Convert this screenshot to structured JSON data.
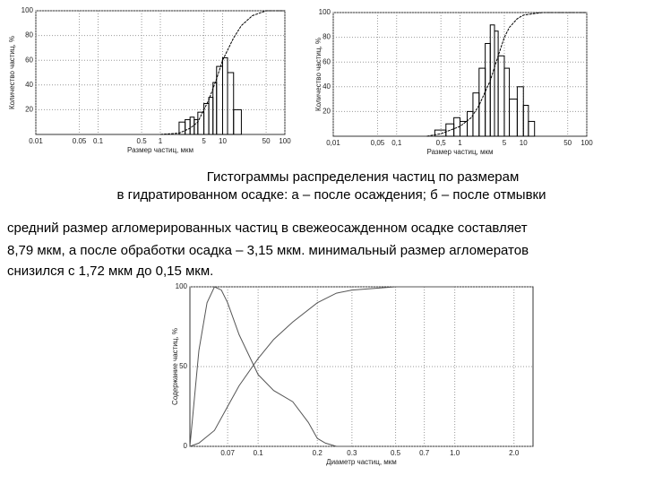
{
  "chart_data": [
    {
      "type": "histogram",
      "xlabel": "Размер частиц, мкм",
      "ylabel": "Количество частиц, %",
      "xscale": "log",
      "xlim": [
        0.01,
        100
      ],
      "ylim": [
        0,
        100
      ],
      "grid": true,
      "color": "#000000",
      "xticks": [
        0.01,
        0.05,
        0.1,
        0.5,
        1,
        5,
        10,
        50,
        100
      ],
      "yticks": [
        20,
        40,
        60,
        80,
        100
      ],
      "bins": [
        2,
        2.5,
        3,
        3.5,
        4,
        5,
        6,
        7,
        8,
        10,
        12,
        15,
        20
      ],
      "values": [
        10,
        12,
        14,
        12,
        18,
        25,
        30,
        42,
        55,
        62,
        50,
        20
      ],
      "curves": [
        {
          "x": [
            1,
            2,
            3,
            4,
            5,
            6,
            8,
            10,
            15,
            20,
            30,
            50,
            100
          ],
          "values": [
            0,
            1,
            5,
            10,
            20,
            28,
            45,
            60,
            78,
            88,
            96,
            100,
            100
          ]
        }
      ]
    },
    {
      "type": "histogram",
      "xlabel": "Размер частиц, мкм",
      "ylabel": "Количество частиц, %",
      "xscale": "log",
      "xlim": [
        0.01,
        100
      ],
      "ylim": [
        0,
        100
      ],
      "grid": true,
      "color": "#000000",
      "xticks": [
        {
          "value": 0.01,
          "label": "0,01"
        },
        {
          "value": 0.05,
          "label": "0,05"
        },
        {
          "value": 0.1,
          "label": "0,1"
        },
        {
          "value": 0.5,
          "label": "0,5"
        },
        1,
        5,
        10,
        50,
        100
      ],
      "yticks": [
        20,
        40,
        60,
        80,
        100
      ],
      "bins": [
        0.4,
        0.6,
        0.8,
        1,
        1.3,
        1.6,
        2,
        2.5,
        3,
        3.5,
        4,
        5,
        6,
        8,
        10,
        12,
        15
      ],
      "values": [
        5,
        10,
        15,
        12,
        20,
        35,
        55,
        75,
        90,
        85,
        65,
        55,
        30,
        40,
        25,
        12
      ],
      "curves": [
        {
          "x": [
            0.3,
            0.5,
            1,
            1.5,
            2,
            3,
            4,
            5,
            6,
            8,
            10,
            20,
            100
          ],
          "values": [
            0,
            2,
            8,
            15,
            25,
            45,
            65,
            80,
            88,
            95,
            98,
            100,
            100
          ]
        }
      ]
    },
    {
      "type": "line",
      "xlabel": "Диаметр частиц, мкм",
      "ylabel": "Содержание частиц, %",
      "xscale": "log",
      "xlim": [
        0.045,
        2.5
      ],
      "ylim": [
        0,
        100
      ],
      "grid": true,
      "color": "#555555",
      "xticks": [
        0.07,
        0.1,
        0.2,
        0.3,
        0.5,
        0.7,
        {
          "value": 1,
          "label": "1.0"
        },
        {
          "value": 2,
          "label": "2.0"
        }
      ],
      "yticks": [
        0,
        50,
        100
      ],
      "curves": [
        {
          "x": [
            0.045,
            0.05,
            0.055,
            0.06,
            0.065,
            0.07,
            0.08,
            0.1,
            0.12,
            0.15,
            0.18,
            0.2,
            0.22,
            0.25,
            0.3
          ],
          "values": [
            0,
            60,
            90,
            100,
            98,
            90,
            70,
            45,
            35,
            28,
            15,
            5,
            2,
            0,
            0
          ]
        },
        {
          "x": [
            0.045,
            0.05,
            0.06,
            0.07,
            0.08,
            0.1,
            0.12,
            0.15,
            0.2,
            0.25,
            0.3,
            0.5,
            1
          ],
          "values": [
            0,
            2,
            10,
            25,
            38,
            55,
            67,
            78,
            90,
            96,
            98,
            100,
            100
          ]
        }
      ]
    }
  ],
  "caption": [
    "Гистограммы распределения частиц по размерам",
    "в гидратированном осадке: а – после осаждения; б – после отмывки"
  ],
  "body": [
    "средний размер агломерированных частиц в свежеосажденном осадке составляет",
    "8,79 мкм, а после обработки осадка – 3,15 мкм. минимальный размер агломератов",
    "снизился с 1,72 мкм до 0,15 мкм."
  ]
}
